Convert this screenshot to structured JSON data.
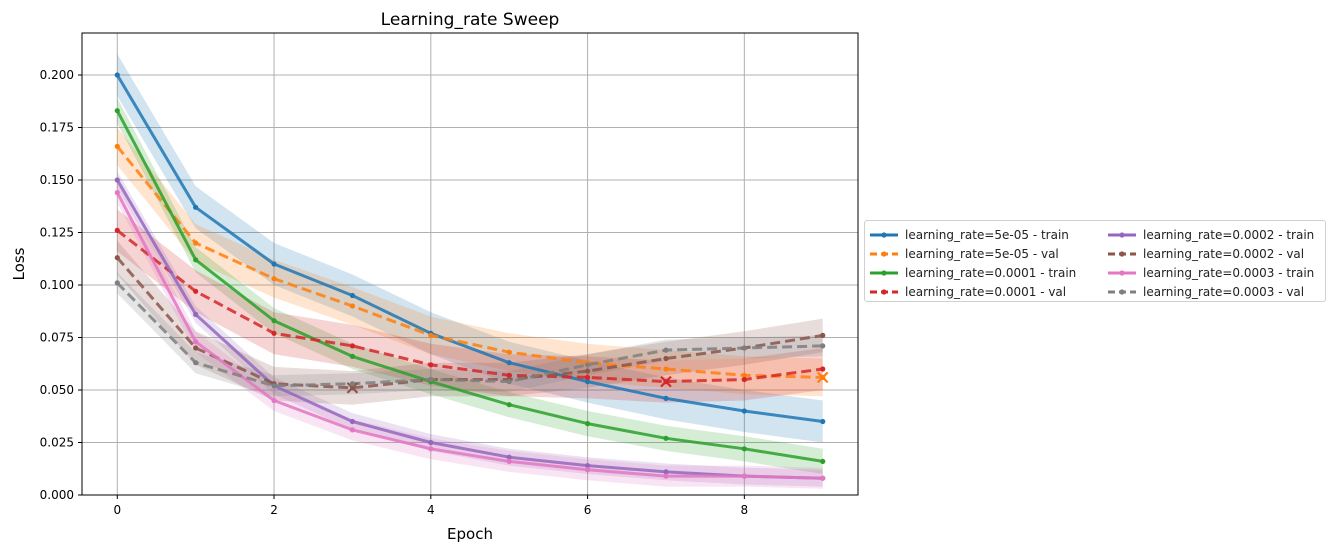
{
  "chart_data": {
    "type": "line",
    "title": "Learning_rate Sweep",
    "xlabel": "Epoch",
    "ylabel": "Loss",
    "xlim": [
      -0.45,
      9.45
    ],
    "ylim": [
      0.0,
      0.22
    ],
    "xticks": [
      0,
      2,
      4,
      6,
      8
    ],
    "yticks": [
      0.0,
      0.025,
      0.05,
      0.075,
      0.1,
      0.125,
      0.15,
      0.175,
      0.2
    ],
    "ytick_labels": [
      "0.000",
      "0.025",
      "0.050",
      "0.075",
      "0.100",
      "0.125",
      "0.150",
      "0.175",
      "0.200"
    ],
    "grid": true,
    "legend_position": "right-outside",
    "x": [
      0,
      1,
      2,
      3,
      4,
      5,
      6,
      7,
      8,
      9
    ],
    "series": [
      {
        "name": "learning_rate=5e-05 - train",
        "color": "#1f77b4",
        "dash": "solid",
        "values": [
          0.2,
          0.137,
          0.11,
          0.095,
          0.077,
          0.063,
          0.054,
          0.046,
          0.04,
          0.035
        ],
        "band": 0.01
      },
      {
        "name": "learning_rate=5e-05 - val",
        "color": "#ff7f0e",
        "dash": "dashed",
        "values": [
          0.166,
          0.12,
          0.103,
          0.09,
          0.076,
          0.068,
          0.063,
          0.06,
          0.057,
          0.056
        ],
        "band": 0.009,
        "best_epoch": 9
      },
      {
        "name": "learning_rate=0.0001 - train",
        "color": "#2ca02c",
        "dash": "solid",
        "values": [
          0.183,
          0.112,
          0.083,
          0.066,
          0.054,
          0.043,
          0.034,
          0.027,
          0.022,
          0.016
        ],
        "band": 0.006
      },
      {
        "name": "learning_rate=0.0001 - val",
        "color": "#d62728",
        "dash": "dashed",
        "values": [
          0.126,
          0.097,
          0.077,
          0.071,
          0.062,
          0.057,
          0.056,
          0.054,
          0.055,
          0.06
        ],
        "band": 0.01,
        "best_epoch": 7
      },
      {
        "name": "learning_rate=0.0002 - train",
        "color": "#9467bd",
        "dash": "solid",
        "values": [
          0.15,
          0.086,
          0.052,
          0.035,
          0.025,
          0.018,
          0.014,
          0.011,
          0.009,
          0.008
        ],
        "band": 0.004
      },
      {
        "name": "learning_rate=0.0002 - val",
        "color": "#8c564b",
        "dash": "dashed",
        "values": [
          0.113,
          0.07,
          0.053,
          0.051,
          0.055,
          0.055,
          0.059,
          0.065,
          0.07,
          0.076
        ],
        "band": 0.008,
        "best_epoch": 3
      },
      {
        "name": "learning_rate=0.0003 - train",
        "color": "#e377c2",
        "dash": "solid",
        "values": [
          0.144,
          0.073,
          0.045,
          0.031,
          0.022,
          0.016,
          0.012,
          0.009,
          0.009,
          0.008
        ],
        "band": 0.005
      },
      {
        "name": "learning_rate=0.0003 - val",
        "color": "#7f7f7f",
        "dash": "dashed",
        "values": [
          0.101,
          0.063,
          0.052,
          0.053,
          0.055,
          0.054,
          0.062,
          0.069,
          0.07,
          0.071
        ],
        "band": 0.005
      }
    ]
  }
}
